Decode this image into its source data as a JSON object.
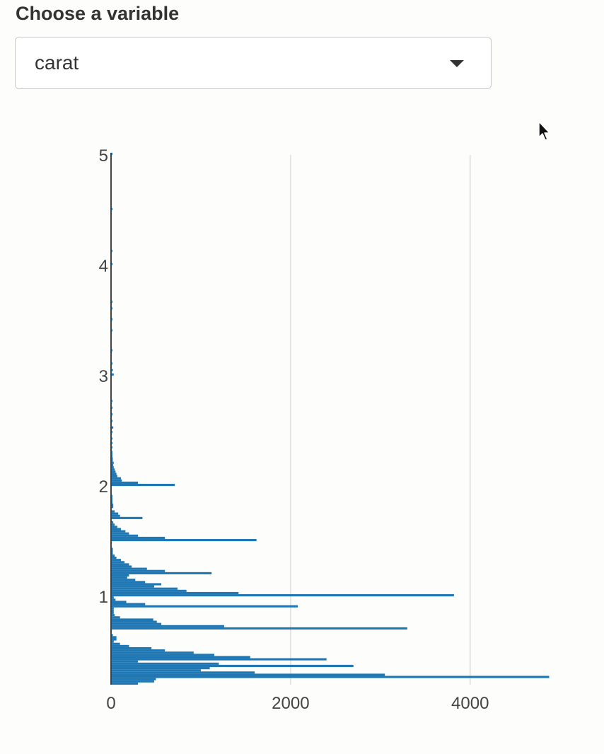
{
  "control": {
    "label": "Choose a variable",
    "selected": "carat"
  },
  "chart_data": {
    "type": "bar",
    "orientation": "horizontal",
    "title": "",
    "xlabel": "",
    "ylabel": "",
    "xlim": [
      0,
      4900
    ],
    "ylim": [
      0.2,
      5.0
    ],
    "bar_height": 0.02,
    "color": "#1f77b4",
    "grid": "vertical",
    "x_ticks": [
      "0",
      "2000",
      "4000"
    ],
    "y_ticks": [
      "1",
      "2",
      "3",
      "4",
      "5"
    ],
    "bars": [
      {
        "y": 0.2,
        "x": 300
      },
      {
        "y": 0.22,
        "x": 480
      },
      {
        "y": 0.24,
        "x": 500
      },
      {
        "y": 0.26,
        "x": 4880
      },
      {
        "y": 0.28,
        "x": 3050
      },
      {
        "y": 0.3,
        "x": 1600
      },
      {
        "y": 0.32,
        "x": 1000
      },
      {
        "y": 0.34,
        "x": 1100
      },
      {
        "y": 0.36,
        "x": 2700
      },
      {
        "y": 0.38,
        "x": 1200
      },
      {
        "y": 0.4,
        "x": 300
      },
      {
        "y": 0.42,
        "x": 2400
      },
      {
        "y": 0.44,
        "x": 1550
      },
      {
        "y": 0.46,
        "x": 1150
      },
      {
        "y": 0.48,
        "x": 920
      },
      {
        "y": 0.5,
        "x": 600
      },
      {
        "y": 0.52,
        "x": 450
      },
      {
        "y": 0.54,
        "x": 200
      },
      {
        "y": 0.56,
        "x": 100
      },
      {
        "y": 0.58,
        "x": 30
      },
      {
        "y": 0.6,
        "x": 60
      },
      {
        "y": 0.62,
        "x": 60
      },
      {
        "y": 0.64,
        "x": 20
      },
      {
        "y": 0.7,
        "x": 3300
      },
      {
        "y": 0.72,
        "x": 1260
      },
      {
        "y": 0.74,
        "x": 560
      },
      {
        "y": 0.76,
        "x": 510
      },
      {
        "y": 0.78,
        "x": 470
      },
      {
        "y": 0.8,
        "x": 100
      },
      {
        "y": 0.82,
        "x": 40
      },
      {
        "y": 0.84,
        "x": 30
      },
      {
        "y": 0.86,
        "x": 30
      },
      {
        "y": 0.88,
        "x": 30
      },
      {
        "y": 0.9,
        "x": 2080
      },
      {
        "y": 0.92,
        "x": 380
      },
      {
        "y": 0.94,
        "x": 170
      },
      {
        "y": 0.96,
        "x": 50
      },
      {
        "y": 0.98,
        "x": 30
      },
      {
        "y": 1.0,
        "x": 3820
      },
      {
        "y": 1.02,
        "x": 1420
      },
      {
        "y": 1.04,
        "x": 840
      },
      {
        "y": 1.06,
        "x": 740
      },
      {
        "y": 1.08,
        "x": 480
      },
      {
        "y": 1.1,
        "x": 560
      },
      {
        "y": 1.12,
        "x": 380
      },
      {
        "y": 1.14,
        "x": 270
      },
      {
        "y": 1.16,
        "x": 180
      },
      {
        "y": 1.18,
        "x": 200
      },
      {
        "y": 1.2,
        "x": 1120
      },
      {
        "y": 1.22,
        "x": 600
      },
      {
        "y": 1.24,
        "x": 400
      },
      {
        "y": 1.26,
        "x": 230
      },
      {
        "y": 1.28,
        "x": 200
      },
      {
        "y": 1.3,
        "x": 150
      },
      {
        "y": 1.32,
        "x": 110
      },
      {
        "y": 1.34,
        "x": 60
      },
      {
        "y": 1.36,
        "x": 40
      },
      {
        "y": 1.38,
        "x": 20
      },
      {
        "y": 1.4,
        "x": 20
      },
      {
        "y": 1.42,
        "x": 20
      },
      {
        "y": 1.5,
        "x": 1620
      },
      {
        "y": 1.52,
        "x": 600
      },
      {
        "y": 1.54,
        "x": 300
      },
      {
        "y": 1.56,
        "x": 200
      },
      {
        "y": 1.58,
        "x": 160
      },
      {
        "y": 1.6,
        "x": 110
      },
      {
        "y": 1.62,
        "x": 70
      },
      {
        "y": 1.64,
        "x": 40
      },
      {
        "y": 1.66,
        "x": 25
      },
      {
        "y": 1.7,
        "x": 350
      },
      {
        "y": 1.72,
        "x": 100
      },
      {
        "y": 1.74,
        "x": 80
      },
      {
        "y": 1.76,
        "x": 40
      },
      {
        "y": 1.8,
        "x": 25
      },
      {
        "y": 1.82,
        "x": 25
      },
      {
        "y": 1.84,
        "x": 15
      },
      {
        "y": 1.86,
        "x": 10
      },
      {
        "y": 1.88,
        "x": 10
      },
      {
        "y": 1.9,
        "x": 10
      },
      {
        "y": 2.0,
        "x": 710
      },
      {
        "y": 2.02,
        "x": 300
      },
      {
        "y": 2.04,
        "x": 120
      },
      {
        "y": 2.06,
        "x": 110
      },
      {
        "y": 2.08,
        "x": 70
      },
      {
        "y": 2.1,
        "x": 60
      },
      {
        "y": 2.12,
        "x": 50
      },
      {
        "y": 2.14,
        "x": 40
      },
      {
        "y": 2.16,
        "x": 30
      },
      {
        "y": 2.18,
        "x": 25
      },
      {
        "y": 2.2,
        "x": 30
      },
      {
        "y": 2.22,
        "x": 20
      },
      {
        "y": 2.24,
        "x": 20
      },
      {
        "y": 2.26,
        "x": 15
      },
      {
        "y": 2.28,
        "x": 15
      },
      {
        "y": 2.3,
        "x": 15
      },
      {
        "y": 2.34,
        "x": 10
      },
      {
        "y": 2.38,
        "x": 10
      },
      {
        "y": 2.42,
        "x": 10
      },
      {
        "y": 2.48,
        "x": 10
      },
      {
        "y": 2.52,
        "x": 25
      },
      {
        "y": 2.58,
        "x": 10
      },
      {
        "y": 2.64,
        "x": 8
      },
      {
        "y": 2.7,
        "x": 8
      },
      {
        "y": 2.76,
        "x": 8
      },
      {
        "y": 3.0,
        "x": 30
      },
      {
        "y": 3.04,
        "x": 20
      },
      {
        "y": 3.1,
        "x": 10
      },
      {
        "y": 3.22,
        "x": 10
      },
      {
        "y": 3.4,
        "x": 10
      },
      {
        "y": 3.5,
        "x": 10
      },
      {
        "y": 3.6,
        "x": 10
      },
      {
        "y": 3.66,
        "x": 10
      },
      {
        "y": 4.0,
        "x": 12
      },
      {
        "y": 4.12,
        "x": 10
      },
      {
        "y": 4.5,
        "x": 10
      },
      {
        "y": 5.0,
        "x": 10
      }
    ]
  }
}
